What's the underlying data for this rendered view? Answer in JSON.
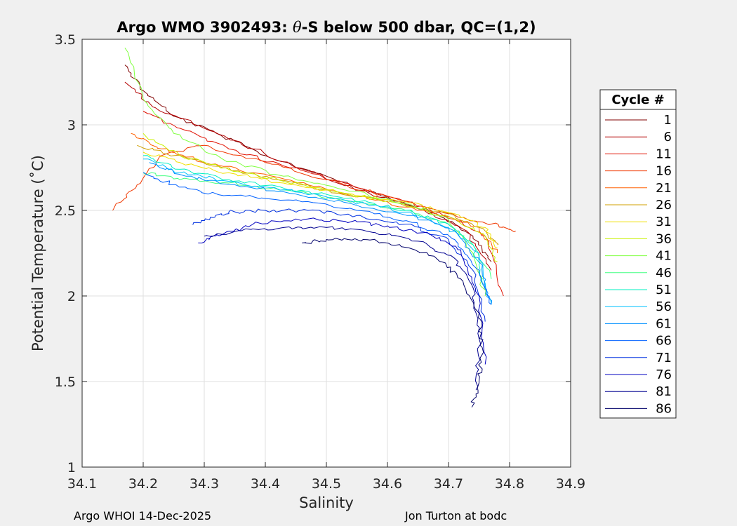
{
  "chart_data": {
    "type": "line",
    "title": "Argo WMO 3902493: θ-S below 500 dbar,  QC=(1,2)",
    "title_parts": {
      "prefix": "Argo WMO 3902493: ",
      "theta": "θ",
      "suffix": "-S below 500 dbar,  QC=(1,2)"
    },
    "xlabel": "Salinity",
    "ylabel": "Potential Temperature (˚C)",
    "xlim": [
      34.1,
      34.9
    ],
    "ylim": [
      1,
      3.5
    ],
    "xticks": [
      34.1,
      34.2,
      34.3,
      34.4,
      34.5,
      34.6,
      34.7,
      34.8,
      34.9
    ],
    "xtick_labels": [
      "34.1",
      "34.2",
      "34.3",
      "34.4",
      "34.5",
      "34.6",
      "34.7",
      "34.8",
      "34.9"
    ],
    "yticks": [
      1,
      1.5,
      2,
      2.5,
      3,
      3.5
    ],
    "ytick_labels": [
      "1",
      "1.5",
      "2",
      "2.5",
      "3",
      "3.5"
    ],
    "grid": true,
    "legend": {
      "title": "Cycle #",
      "placement": "right-outside",
      "entries": [
        {
          "label": "1",
          "color": "#800000"
        },
        {
          "label": "6",
          "color": "#b40000"
        },
        {
          "label": "11",
          "color": "#e01000"
        },
        {
          "label": "16",
          "color": "#f03800"
        },
        {
          "label": "21",
          "color": "#ff6000"
        },
        {
          "label": "26",
          "color": "#d0a000"
        },
        {
          "label": "31",
          "color": "#f0e000"
        },
        {
          "label": "36",
          "color": "#c8f000"
        },
        {
          "label": "41",
          "color": "#80ff40"
        },
        {
          "label": "46",
          "color": "#40ff80"
        },
        {
          "label": "51",
          "color": "#00f0c0"
        },
        {
          "label": "56",
          "color": "#00c0ff"
        },
        {
          "label": "61",
          "color": "#0090ff"
        },
        {
          "label": "66",
          "color": "#0060ff"
        },
        {
          "label": "71",
          "color": "#0030e0"
        },
        {
          "label": "76",
          "color": "#0000c0"
        },
        {
          "label": "81",
          "color": "#000090"
        },
        {
          "label": "86",
          "color": "#00006a"
        }
      ]
    },
    "series": [
      {
        "name": "1",
        "color": "#800000",
        "s": [
          34.17,
          34.2,
          34.25,
          34.32,
          34.4,
          34.5,
          34.6,
          34.68,
          34.74,
          34.77
        ],
        "t": [
          3.35,
          3.2,
          3.05,
          2.95,
          2.82,
          2.7,
          2.58,
          2.48,
          2.35,
          2.2
        ]
      },
      {
        "name": "6",
        "color": "#b40000",
        "s": [
          34.17,
          34.22,
          34.3,
          34.38,
          34.47,
          34.57,
          34.66,
          34.73,
          34.77
        ],
        "t": [
          3.25,
          3.1,
          2.98,
          2.86,
          2.73,
          2.6,
          2.5,
          2.38,
          2.15
        ]
      },
      {
        "name": "11",
        "color": "#e01000",
        "s": [
          34.2,
          34.26,
          34.34,
          34.43,
          34.53,
          34.63,
          34.71,
          34.76,
          34.79
        ],
        "t": [
          3.08,
          2.98,
          2.86,
          2.76,
          2.66,
          2.55,
          2.45,
          2.35,
          2.0
        ]
      },
      {
        "name": "16",
        "color": "#f03800",
        "s": [
          34.15,
          34.19,
          34.23,
          34.3,
          34.4,
          34.5,
          34.6,
          34.7,
          34.77,
          34.81
        ],
        "t": [
          2.5,
          2.65,
          2.82,
          2.88,
          2.78,
          2.68,
          2.58,
          2.48,
          2.42,
          2.38
        ]
      },
      {
        "name": "21",
        "color": "#ff6000",
        "s": [
          34.18,
          34.23,
          34.3,
          34.38,
          34.48,
          34.58,
          34.68,
          34.75,
          34.78
        ],
        "t": [
          2.95,
          2.86,
          2.78,
          2.72,
          2.64,
          2.56,
          2.48,
          2.4,
          2.25
        ]
      },
      {
        "name": "26",
        "color": "#d0a000",
        "s": [
          34.19,
          34.25,
          34.33,
          34.42,
          34.52,
          34.62,
          34.71,
          34.76,
          34.78
        ],
        "t": [
          2.88,
          2.82,
          2.75,
          2.68,
          2.6,
          2.54,
          2.47,
          2.38,
          2.3
        ]
      },
      {
        "name": "31",
        "color": "#f0e000",
        "s": [
          34.2,
          34.26,
          34.34,
          34.43,
          34.53,
          34.63,
          34.71,
          34.76,
          34.78
        ],
        "t": [
          2.84,
          2.78,
          2.72,
          2.66,
          2.6,
          2.55,
          2.48,
          2.4,
          2.28
        ]
      },
      {
        "name": "36",
        "color": "#c8f000",
        "s": [
          34.2,
          34.26,
          34.34,
          34.43,
          34.53,
          34.63,
          34.71,
          34.76,
          34.78
        ],
        "t": [
          2.95,
          2.82,
          2.74,
          2.67,
          2.6,
          2.53,
          2.45,
          2.35,
          2.2
        ]
      },
      {
        "name": "41",
        "color": "#80ff40",
        "s": [
          34.17,
          34.2,
          34.25,
          34.33,
          34.43,
          34.53,
          34.63,
          34.7,
          34.74,
          34.76
        ],
        "t": [
          3.45,
          3.15,
          2.95,
          2.8,
          2.7,
          2.62,
          2.54,
          2.45,
          2.25,
          2.0
        ]
      },
      {
        "name": "46",
        "color": "#40ff80",
        "s": [
          34.2,
          34.26,
          34.34,
          34.43,
          34.53,
          34.63,
          34.7,
          34.74,
          34.77
        ],
        "t": [
          2.72,
          2.68,
          2.66,
          2.62,
          2.56,
          2.5,
          2.42,
          2.3,
          2.1
        ]
      },
      {
        "name": "51",
        "color": "#00f0c0",
        "s": [
          34.2,
          34.26,
          34.34,
          34.43,
          34.53,
          34.63,
          34.7,
          34.74,
          34.76
        ],
        "t": [
          2.82,
          2.74,
          2.68,
          2.63,
          2.57,
          2.5,
          2.42,
          2.3,
          2.05
        ]
      },
      {
        "name": "56",
        "color": "#00c0ff",
        "s": [
          34.2,
          34.26,
          34.34,
          34.43,
          34.53,
          34.63,
          34.7,
          34.75,
          34.77
        ],
        "t": [
          2.8,
          2.72,
          2.67,
          2.62,
          2.56,
          2.49,
          2.4,
          2.25,
          1.95
        ]
      },
      {
        "name": "61",
        "color": "#0090ff",
        "s": [
          34.21,
          34.27,
          34.35,
          34.44,
          34.54,
          34.64,
          34.71,
          34.75,
          34.77
        ],
        "t": [
          2.78,
          2.7,
          2.65,
          2.6,
          2.54,
          2.47,
          2.38,
          2.2,
          1.95
        ]
      },
      {
        "name": "66",
        "color": "#0060ff",
        "s": [
          34.2,
          34.25,
          34.31,
          34.38,
          34.46,
          34.55,
          34.64,
          34.71,
          34.75,
          34.77
        ],
        "t": [
          2.72,
          2.65,
          2.6,
          2.58,
          2.55,
          2.5,
          2.43,
          2.33,
          2.15,
          1.95
        ]
      },
      {
        "name": "71",
        "color": "#0030e0",
        "s": [
          34.28,
          34.31,
          34.34,
          34.4,
          34.47,
          34.55,
          34.63,
          34.7,
          34.74,
          34.76
        ],
        "t": [
          2.42,
          2.46,
          2.49,
          2.5,
          2.5,
          2.47,
          2.42,
          2.33,
          2.15,
          1.85
        ]
      },
      {
        "name": "76",
        "color": "#0000c0",
        "s": [
          34.29,
          34.33,
          34.38,
          34.45,
          34.52,
          34.6,
          34.67,
          34.72,
          34.75,
          34.76
        ],
        "t": [
          2.31,
          2.36,
          2.42,
          2.45,
          2.44,
          2.41,
          2.36,
          2.27,
          2.0,
          1.6
        ]
      },
      {
        "name": "81",
        "color": "#000090",
        "s": [
          34.3,
          34.36,
          34.43,
          34.5,
          34.58,
          34.65,
          34.71,
          34.74,
          34.75,
          34.745
        ],
        "t": [
          2.35,
          2.38,
          2.4,
          2.4,
          2.37,
          2.32,
          2.22,
          2.05,
          1.75,
          1.45
        ]
      },
      {
        "name": "86",
        "color": "#00006a",
        "s": [
          34.46,
          34.5,
          34.56,
          34.62,
          34.68,
          34.72,
          34.75,
          34.755,
          34.75,
          34.738
        ],
        "t": [
          2.31,
          2.33,
          2.33,
          2.3,
          2.22,
          2.1,
          1.9,
          1.7,
          1.5,
          1.35
        ]
      }
    ]
  },
  "footer": {
    "left": "Argo WHOI 14-Dec-2025",
    "right": "Jon Turton at bodc"
  }
}
